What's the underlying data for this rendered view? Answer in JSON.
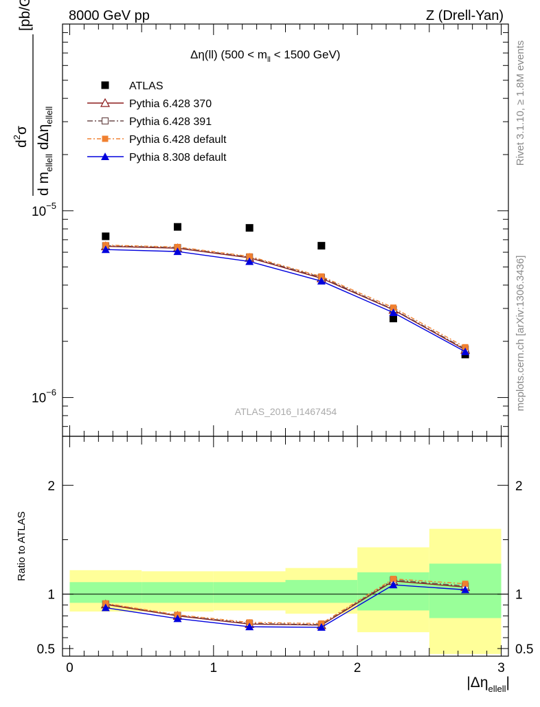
{
  "header": {
    "left": "8000 GeV pp",
    "right": "Z (Drell-Yan)"
  },
  "side_labels": {
    "rivet": "Rivet 3.1.10, ≥ 1.8M events",
    "mcplots": "mcplots.cern.ch [arXiv:1306.3436]"
  },
  "watermark": "ATLAS_2016_I1467454",
  "plot_title": {
    "main": "Δη(ll) (500 < m",
    "sub": "ll",
    "tail": " < 1500 GeV)"
  },
  "y_label_main": {
    "unit": "[pb/GeV]"
  },
  "y_label_ratio": "Ratio to ATLAS",
  "x_label": {
    "main": "|Δη",
    "sub": "ellell",
    "tail": "|"
  },
  "colors": {
    "atlas": "#000000",
    "pythia6_370": "#8b1a1a",
    "pythia6_391": "#6b4a4a",
    "pythia6_default": "#f08030",
    "pythia8_default": "#0000dd",
    "band_inner": "#99ff99",
    "band_outer": "#ffff99"
  },
  "chart_data": [
    {
      "type": "scatter",
      "panel": "main",
      "yscale": "log",
      "ylim": [
        6.2e-07,
        0.0001
      ],
      "xlim": [
        -0.05,
        3.05
      ],
      "y_ticks": [
        {
          "value": 1e-05,
          "label": "10",
          "exp": "−5"
        },
        {
          "value": 1e-06,
          "label": "10",
          "exp": "−6"
        }
      ],
      "x": [
        0.25,
        0.75,
        1.25,
        1.75,
        2.25,
        2.75
      ],
      "series": [
        {
          "name": "ATLAS",
          "values": [
            7.3e-06,
            8.2e-06,
            8.1e-06,
            6.5e-06,
            2.65e-06,
            1.7e-06
          ]
        },
        {
          "name": "Pythia 6.428 370",
          "values": [
            6.45e-06,
            6.3e-06,
            5.6e-06,
            4.35e-06,
            2.95e-06,
            1.8e-06
          ]
        },
        {
          "name": "Pythia 6.428 391",
          "values": [
            6.5e-06,
            6.35e-06,
            5.65e-06,
            4.4e-06,
            2.97e-06,
            1.82e-06
          ]
        },
        {
          "name": "Pythia 6.428 default",
          "values": [
            6.55e-06,
            6.4e-06,
            5.7e-06,
            4.45e-06,
            3.03e-06,
            1.86e-06
          ]
        },
        {
          "name": "Pythia 8.308 default",
          "values": [
            6.2e-06,
            6.05e-06,
            5.35e-06,
            4.2e-06,
            2.85e-06,
            1.76e-06
          ]
        }
      ],
      "legend_position": "top-left"
    },
    {
      "type": "line",
      "panel": "ratio",
      "ylim": [
        0.43,
        2.45
      ],
      "xlim": [
        -0.05,
        3.05
      ],
      "y_ticks": [
        "0.5",
        "1",
        "2"
      ],
      "y_tick_values": [
        0.5,
        1,
        2
      ],
      "x_ticks": [
        "0",
        "1",
        "2",
        "3"
      ],
      "x_tick_values": [
        0,
        1,
        2,
        3
      ],
      "bins": [
        [
          0,
          0.5
        ],
        [
          0.5,
          1.0
        ],
        [
          1.0,
          1.5
        ],
        [
          1.5,
          2.0
        ],
        [
          2.0,
          2.5
        ],
        [
          2.5,
          3.0
        ]
      ],
      "band_inner": [
        [
          0.92,
          1.11
        ],
        [
          0.92,
          1.11
        ],
        [
          0.92,
          1.11
        ],
        [
          0.92,
          1.13
        ],
        [
          0.85,
          1.2
        ],
        [
          0.78,
          1.28
        ]
      ],
      "band_outer": [
        [
          0.84,
          1.22
        ],
        [
          0.84,
          1.21
        ],
        [
          0.85,
          1.21
        ],
        [
          0.82,
          1.24
        ],
        [
          0.65,
          1.43
        ],
        [
          0.45,
          1.6
        ]
      ],
      "x": [
        0.25,
        0.75,
        1.25,
        1.75,
        2.25,
        2.75
      ],
      "series": [
        {
          "name": "Pythia 6.428 370",
          "values": [
            0.905,
            0.8,
            0.725,
            0.715,
            1.12,
            1.065
          ]
        },
        {
          "name": "Pythia 6.428 391",
          "values": [
            0.91,
            0.805,
            0.73,
            0.72,
            1.13,
            1.075
          ]
        },
        {
          "name": "Pythia 6.428 default",
          "values": [
            0.915,
            0.81,
            0.74,
            0.73,
            1.14,
            1.095
          ]
        },
        {
          "name": "Pythia 8.308 default",
          "values": [
            0.875,
            0.775,
            0.7,
            0.695,
            1.085,
            1.04
          ]
        }
      ]
    }
  ]
}
